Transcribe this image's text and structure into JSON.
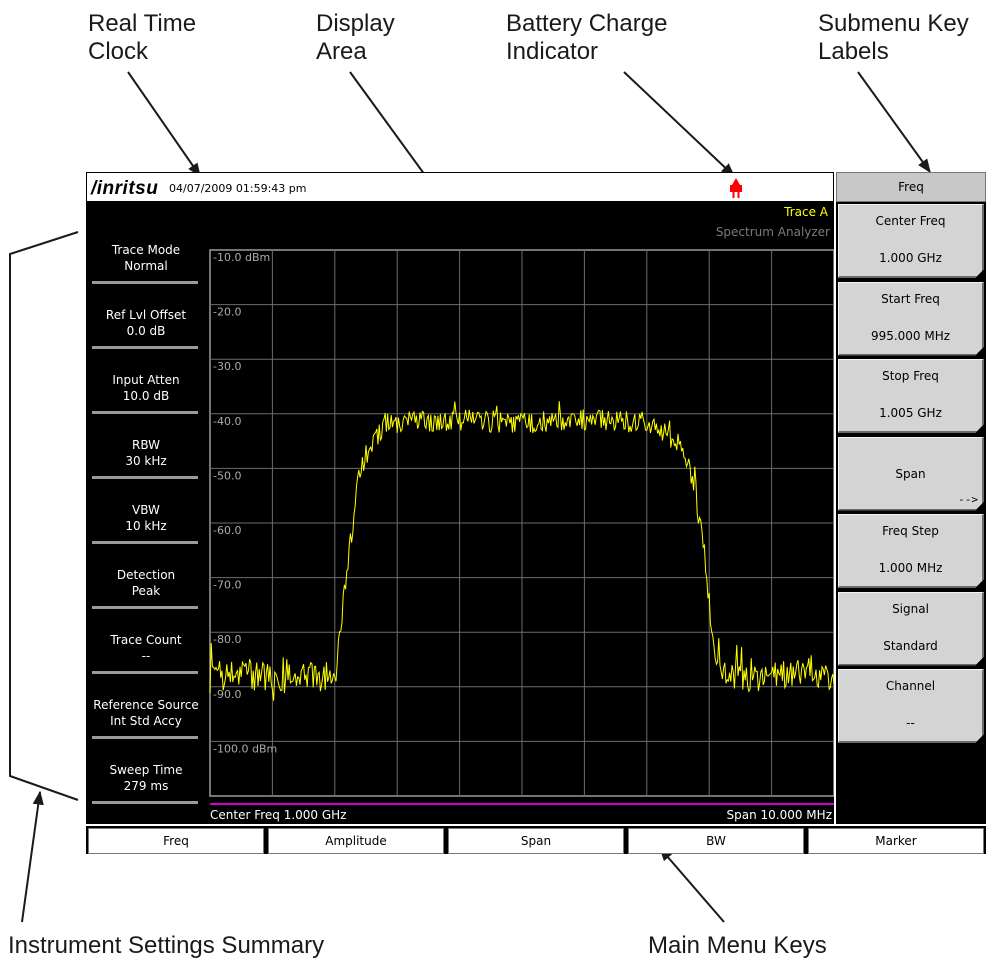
{
  "callouts": {
    "real_time_clock": "Real Time\nClock",
    "display_area": "Display\nArea",
    "battery_charge": "Battery Charge\nIndicator",
    "submenu_labels": "Submenu Key\nLabels",
    "instrument_summary": "Instrument Settings Summary",
    "main_menu_keys": "Main Menu Keys"
  },
  "titlebar": {
    "logo": "/inritsu",
    "datetime": "04/07/2009 01:59:43 pm",
    "battery_icon": "plug-icon",
    "battery_color": "#ff0000"
  },
  "display": {
    "trace_label": "Trace A",
    "mode_label": "Spectrum Analyzer",
    "center_freq": "Center Freq 1.000 GHz",
    "span": "Span 10.000 MHz"
  },
  "settings": [
    {
      "name": "Trace Mode",
      "value": "Normal"
    },
    {
      "name": "Ref Lvl Offset",
      "value": "0.0 dB"
    },
    {
      "name": "Input Atten",
      "value": "10.0 dB"
    },
    {
      "name": "RBW",
      "value": "30 kHz"
    },
    {
      "name": "VBW",
      "value": "10 kHz"
    },
    {
      "name": "Detection",
      "value": "Peak"
    },
    {
      "name": "Trace Count",
      "value": "--"
    },
    {
      "name": "Reference Source",
      "value": "Int Std Accy"
    },
    {
      "name": "Sweep Time",
      "value": "279 ms"
    }
  ],
  "submenu": {
    "title": "Freq",
    "keys": [
      {
        "label": "Center Freq",
        "value": "1.000 GHz"
      },
      {
        "label": "Start Freq",
        "value": "995.000 MHz"
      },
      {
        "label": "Stop Freq",
        "value": "1.005 GHz"
      },
      {
        "label": "Span",
        "value": "",
        "arrow": "-->"
      },
      {
        "label": "Freq Step",
        "value": "1.000 MHz"
      },
      {
        "label": "Signal",
        "value": "Standard"
      },
      {
        "label": "Channel",
        "value": "--"
      }
    ]
  },
  "main_menu": [
    "Freq",
    "Amplitude",
    "Span",
    "BW",
    "Marker"
  ],
  "chart_data": {
    "type": "line",
    "ylim": [
      -100,
      -10
    ],
    "y_ticks": [
      "-10.0 dBm",
      "-20.0",
      "-30.0",
      "-40.0",
      "-50.0",
      "-60.0",
      "-70.0",
      "-80.0",
      "-90.0",
      "-100.0 dBm"
    ],
    "x_unit": "MHz",
    "xlim": [
      995,
      1005
    ],
    "grid": true,
    "trace_color": "#ffff00",
    "series": [
      {
        "x": [
          995.0,
          995.5,
          996.0,
          996.5,
          997.0,
          997.2,
          997.4,
          997.6,
          997.8,
          998.0,
          999.0,
          1000.0,
          1001.0,
          1002.0,
          1002.5,
          1002.7,
          1002.9,
          1003.1,
          1003.3,
          1003.5,
          1004.0,
          1004.5,
          1005.0
        ],
        "values": [
          -80.5,
          -79.5,
          -81.0,
          -80.0,
          -80.5,
          -62.0,
          -46.0,
          -42.0,
          -38.5,
          -38.5,
          -38.0,
          -38.5,
          -38.0,
          -38.5,
          -41.5,
          -46.0,
          -58.0,
          -78.0,
          -80.5,
          -80.0,
          -80.5,
          -79.5,
          -80.5
        ]
      }
    ]
  }
}
